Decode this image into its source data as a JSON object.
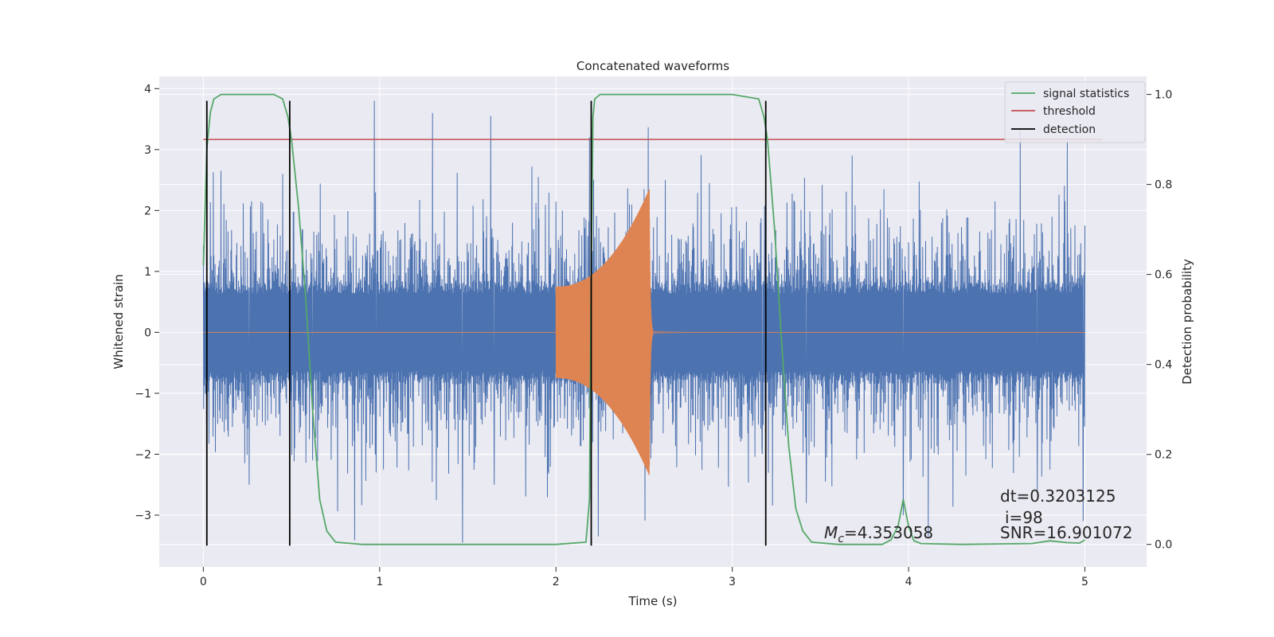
{
  "chart_data": {
    "type": "line",
    "title": "Concatenated waveforms",
    "xlabel": "Time (s)",
    "ylabel": "Whitened strain",
    "y2label": "Detection probability",
    "xlim": [
      -0.25,
      5.35
    ],
    "ylim": [
      -3.85,
      4.2
    ],
    "y2lim": [
      -0.05,
      1.04
    ],
    "xticks": [
      0,
      1,
      2,
      3,
      4,
      5
    ],
    "yticks": [
      -3,
      -2,
      -1,
      0,
      1,
      2,
      3,
      4
    ],
    "y2ticks": [
      0.0,
      0.2,
      0.4,
      0.6,
      0.8,
      1.0
    ],
    "grid": true,
    "legend_position": "top-right",
    "colors": {
      "background": "#eaeaf2",
      "grid": "#ffffff",
      "strain": "#4c72b0",
      "template": "#dd8452",
      "signal_statistics": "#55a868",
      "threshold": "#c44e52",
      "detection": "#000000"
    },
    "series": [
      {
        "key": "whitened_strain",
        "axis": "left",
        "description_type": "noise",
        "x_range": [
          0,
          5
        ],
        "envelope_core": 0.85,
        "peaks": [
          [
            0.02,
            -1.75
          ],
          [
            0.1,
            2.65
          ],
          [
            0.26,
            -2.5
          ],
          [
            0.45,
            2.6
          ],
          [
            0.62,
            -2.1
          ],
          [
            0.97,
            3.82
          ],
          [
            0.98,
            -2.3
          ],
          [
            1.3,
            3.6
          ],
          [
            1.47,
            -3.45
          ],
          [
            1.63,
            3.55
          ],
          [
            1.65,
            -2.5
          ],
          [
            1.9,
            2.55
          ],
          [
            2.19,
            3.2
          ],
          [
            2.24,
            -3.35
          ],
          [
            2.5,
            2.35
          ],
          [
            2.62,
            2.5
          ],
          [
            2.87,
            2.45
          ],
          [
            3.17,
            -2.0
          ],
          [
            3.42,
            -2.8
          ],
          [
            3.68,
            2.9
          ],
          [
            3.86,
            2.35
          ],
          [
            3.97,
            -3.0
          ],
          [
            4.49,
            2.15
          ],
          [
            4.73,
            -2.6
          ],
          [
            4.9,
            3.2
          ],
          [
            4.99,
            -3.1
          ]
        ]
      },
      {
        "key": "template_waveform",
        "axis": "left",
        "description_type": "chirp",
        "x_range": [
          2.0,
          2.55
        ],
        "start_amplitude": 0.75,
        "peak_amplitude": 2.35,
        "peak_time": 2.53
      },
      {
        "key": "signal_statistics",
        "name": "signal statistics",
        "axis": "right",
        "x": [
          0.0,
          0.02,
          0.04,
          0.06,
          0.1,
          0.2,
          0.4,
          0.45,
          0.48,
          0.5,
          0.54,
          0.58,
          0.62,
          0.66,
          0.7,
          0.75,
          0.9,
          1.5,
          2.0,
          2.17,
          2.19,
          2.2,
          2.21,
          2.22,
          2.25,
          2.3,
          2.5,
          3.0,
          3.15,
          3.18,
          3.2,
          3.24,
          3.28,
          3.32,
          3.36,
          3.4,
          3.45,
          3.6,
          3.85,
          3.9,
          3.94,
          3.97,
          4.0,
          4.03,
          4.07,
          4.3,
          4.7,
          4.8,
          4.9,
          4.97,
          5.0
        ],
        "y": [
          0.62,
          0.88,
          0.96,
          0.99,
          1.0,
          1.0,
          1.0,
          0.99,
          0.95,
          0.9,
          0.75,
          0.55,
          0.3,
          0.1,
          0.03,
          0.005,
          0.0,
          0.0,
          0.0,
          0.005,
          0.1,
          0.6,
          0.95,
          0.99,
          1.0,
          1.0,
          1.0,
          1.0,
          0.99,
          0.95,
          0.9,
          0.7,
          0.45,
          0.22,
          0.08,
          0.03,
          0.005,
          0.0,
          0.0,
          0.01,
          0.04,
          0.1,
          0.04,
          0.008,
          0.002,
          0.0,
          0.002,
          0.008,
          0.004,
          0.003,
          0.01
        ]
      },
      {
        "key": "threshold",
        "name": "threshold",
        "axis": "right",
        "x": [
          0.0,
          5.1
        ],
        "y": [
          0.9,
          0.9
        ]
      },
      {
        "key": "detection",
        "name": "detection",
        "axis": "left",
        "x": [
          0.02,
          0.49,
          2.2,
          3.19
        ],
        "y_range": [
          -3.5,
          3.8
        ]
      }
    ],
    "annotations": {
      "dt": "dt=0.3203125",
      "i": "i=98",
      "snr": "SNR=16.901072",
      "mc_symbol": "M",
      "mc_subscript": "c",
      "mc_value": "=4.353058"
    }
  }
}
